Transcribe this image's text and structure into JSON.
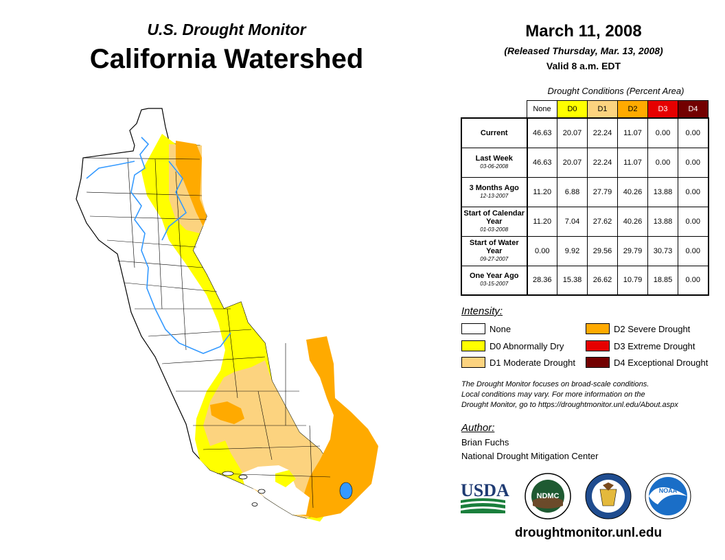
{
  "header": {
    "subtitle": "U.S. Drought Monitor",
    "title": "California Watershed"
  },
  "release": {
    "date": "March 11, 2008",
    "released": "(Released Thursday, Mar. 13, 2008)",
    "valid": "Valid 8 a.m. EDT"
  },
  "table": {
    "caption": "Drought Conditions (Percent Area)",
    "columns": [
      {
        "label": "None",
        "color": "#ffffff",
        "text_color": "#000000"
      },
      {
        "label": "D0",
        "color": "#ffff00",
        "text_color": "#000000"
      },
      {
        "label": "D1",
        "color": "#fcd37f",
        "text_color": "#000000"
      },
      {
        "label": "D2",
        "color": "#ffaa00",
        "text_color": "#000000"
      },
      {
        "label": "D3",
        "color": "#e60000",
        "text_color": "#ffffff"
      },
      {
        "label": "D4",
        "color": "#730000",
        "text_color": "#ffffff"
      }
    ],
    "rows": [
      {
        "label": "Current",
        "date": "",
        "values": [
          "46.63",
          "20.07",
          "22.24",
          "11.07",
          "0.00",
          "0.00"
        ]
      },
      {
        "label": "Last Week",
        "date": "03-06-2008",
        "values": [
          "46.63",
          "20.07",
          "22.24",
          "11.07",
          "0.00",
          "0.00"
        ]
      },
      {
        "label": "3 Months Ago",
        "date": "12-13-2007",
        "values": [
          "11.20",
          "6.88",
          "27.79",
          "40.26",
          "13.88",
          "0.00"
        ]
      },
      {
        "label": "Start of Calendar Year",
        "date": "01-03-2008",
        "values": [
          "11.20",
          "7.04",
          "27.62",
          "40.26",
          "13.88",
          "0.00"
        ]
      },
      {
        "label": "Start of Water Year",
        "date": "09-27-2007",
        "values": [
          "0.00",
          "9.92",
          "29.56",
          "29.79",
          "30.73",
          "0.00"
        ]
      },
      {
        "label": "One Year Ago",
        "date": "03-15-2007",
        "values": [
          "28.36",
          "15.38",
          "26.62",
          "10.79",
          "18.85",
          "0.00"
        ]
      }
    ]
  },
  "legend": {
    "title": "Intensity:",
    "items": [
      {
        "label": "None",
        "color": "#ffffff"
      },
      {
        "label": "D0 Abnormally Dry",
        "color": "#ffff00"
      },
      {
        "label": "D1 Moderate Drought",
        "color": "#fcd37f"
      },
      {
        "label": "D2 Severe Drought",
        "color": "#ffaa00"
      },
      {
        "label": "D3 Extreme Drought",
        "color": "#e60000"
      },
      {
        "label": "D4 Exceptional Drought",
        "color": "#730000"
      }
    ]
  },
  "blurb": {
    "line1": "The Drought Monitor focuses on broad-scale conditions.",
    "line2": "Local conditions may vary. For more information on the",
    "line3": "Drought Monitor, go to https://droughtmonitor.unl.edu/About.aspx"
  },
  "author": {
    "title": "Author:",
    "name": "Brian Fuchs",
    "org": "National Drought Mitigation Center"
  },
  "logos": {
    "usda": "USDA",
    "ndmc": "NDMC",
    "noaa": "NOAA"
  },
  "footer": {
    "url": "droughtmonitor.unl.edu"
  },
  "colors": {
    "river": "#3399ff",
    "county_border": "#000000",
    "usda_blue": "#1f3b73",
    "usda_green": "#1a7f3c",
    "ndmc_green": "#1e5a32",
    "noaa_blue": "#1a6ec7"
  }
}
